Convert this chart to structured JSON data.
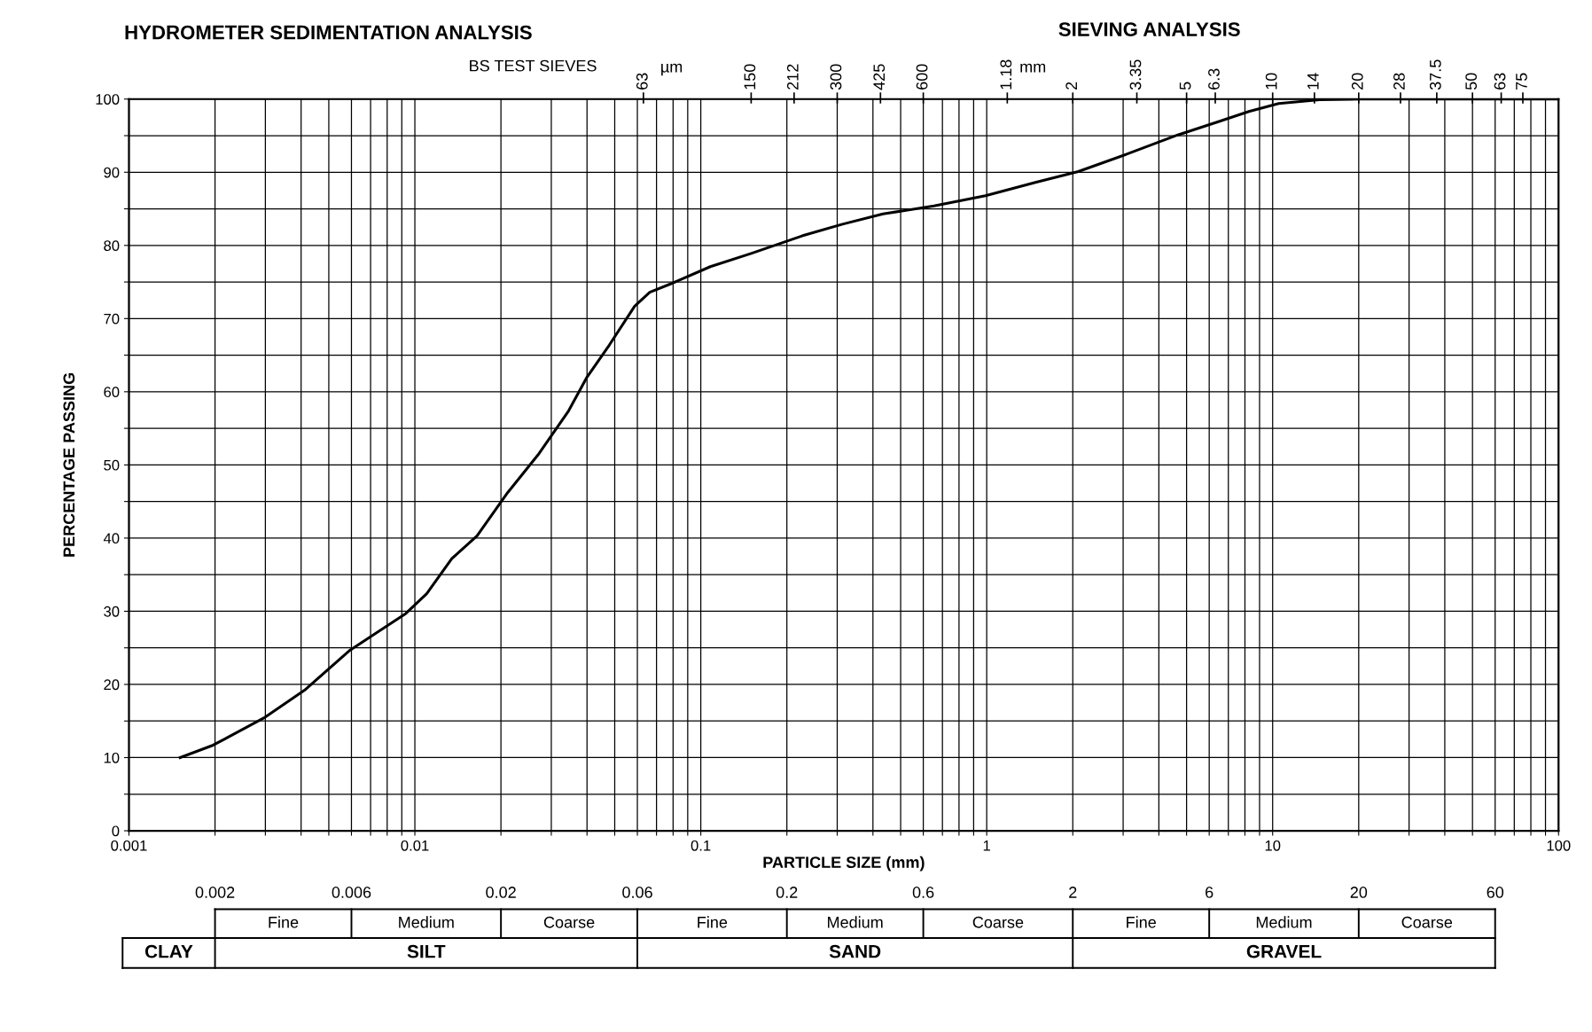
{
  "chart_data": {
    "type": "line",
    "title": "HYDROMETER SEDIMENTATION ANALYSIS",
    "xlabel": "PARTICLE SIZE (mm)",
    "ylabel": "PERCENTAGE PASSING",
    "log": "x",
    "grid": true,
    "legend": false,
    "marker": "none",
    "line_style": "solid",
    "xlim": [
      0.001,
      100
    ],
    "xticks": [
      0.001,
      {
        "value": 0.002,
        "label": null
      },
      {
        "value": 0.003,
        "label": null
      },
      {
        "value": 0.004,
        "label": null
      },
      {
        "value": 0.005,
        "label": null
      },
      {
        "value": 0.006,
        "label": null
      },
      {
        "value": 0.007,
        "label": null
      },
      {
        "value": 0.008,
        "label": null
      },
      {
        "value": 0.009,
        "label": null
      },
      0.01,
      {
        "value": 0.02,
        "label": null
      },
      {
        "value": 0.03,
        "label": null
      },
      {
        "value": 0.04,
        "label": null
      },
      {
        "value": 0.05,
        "label": null
      },
      {
        "value": 0.06,
        "label": null
      },
      {
        "value": 0.07,
        "label": null
      },
      {
        "value": 0.08,
        "label": null
      },
      {
        "value": 0.09,
        "label": null
      },
      0.1,
      {
        "value": 0.2,
        "label": null
      },
      {
        "value": 0.3,
        "label": null
      },
      {
        "value": 0.4,
        "label": null
      },
      {
        "value": 0.5,
        "label": null
      },
      {
        "value": 0.6,
        "label": null
      },
      {
        "value": 0.7,
        "label": null
      },
      {
        "value": 0.8,
        "label": null
      },
      {
        "value": 0.9,
        "label": null
      },
      1,
      {
        "value": 2,
        "label": null
      },
      {
        "value": 3,
        "label": null
      },
      {
        "value": 4,
        "label": null
      },
      {
        "value": 5,
        "label": null
      },
      {
        "value": 6,
        "label": null
      },
      {
        "value": 7,
        "label": null
      },
      {
        "value": 8,
        "label": null
      },
      {
        "value": 9,
        "label": null
      },
      10,
      {
        "value": 20,
        "label": null
      },
      {
        "value": 30,
        "label": null
      },
      {
        "value": 40,
        "label": null
      },
      {
        "value": 50,
        "label": null
      },
      {
        "value": 60,
        "label": null
      },
      {
        "value": 70,
        "label": null
      },
      {
        "value": 80,
        "label": null
      },
      {
        "value": 90,
        "label": null
      },
      100
    ],
    "ylim": [
      0,
      100
    ],
    "yticks": [
      0,
      {
        "value": 5,
        "label": null
      },
      10,
      {
        "value": 15,
        "label": null
      },
      20,
      {
        "value": 25,
        "label": null
      },
      30,
      {
        "value": 35,
        "label": null
      },
      40,
      {
        "value": 45,
        "label": null
      },
      50,
      {
        "value": 55,
        "label": null
      },
      60,
      {
        "value": 65,
        "label": null
      },
      70,
      {
        "value": 75,
        "label": null
      },
      80,
      {
        "value": 85,
        "label": null
      },
      90,
      {
        "value": 95,
        "label": null
      },
      100
    ],
    "annotations": [
      "SIEVING ANALYSIS",
      "BS TEST SIEVES",
      "µm",
      "mm",
      "CLAY",
      "Fine",
      "Medium",
      "Coarse",
      "Fine",
      "Medium",
      "Coarse",
      "Fine",
      "Medium",
      "Coarse",
      "SILT",
      "SAND",
      "GRAVEL"
    ],
    "ref_lines": [
      {
        "axis": "x",
        "value": 0.063,
        "label": "63"
      },
      {
        "axis": "x",
        "value": 0.15,
        "label": "150"
      },
      {
        "axis": "x",
        "value": 0.212,
        "label": "212"
      },
      {
        "axis": "x",
        "value": 0.3,
        "label": "300"
      },
      {
        "axis": "x",
        "value": 0.425,
        "label": "425"
      },
      {
        "axis": "x",
        "value": 0.6,
        "label": "600"
      },
      {
        "axis": "x",
        "value": 1.18,
        "label": "1.18"
      },
      {
        "axis": "x",
        "value": 2,
        "label": "2"
      },
      {
        "axis": "x",
        "value": 3.35,
        "label": "3.35"
      },
      {
        "axis": "x",
        "value": 5,
        "label": "5"
      },
      {
        "axis": "x",
        "value": 6.3,
        "label": "6.3"
      },
      {
        "axis": "x",
        "value": 10,
        "label": "10"
      },
      {
        "axis": "x",
        "value": 14,
        "label": "14"
      },
      {
        "axis": "x",
        "value": 20,
        "label": "20"
      },
      {
        "axis": "x",
        "value": 28,
        "label": "28"
      },
      {
        "axis": "x",
        "value": 37.5,
        "label": "37.5"
      },
      {
        "axis": "x",
        "value": 50,
        "label": "50"
      },
      {
        "axis": "x",
        "value": 63,
        "label": "63"
      },
      {
        "axis": "x",
        "value": 75,
        "label": "75"
      },
      {
        "axis": "x",
        "value": 0.002,
        "label": "0.002",
        "line_style": "solid"
      },
      {
        "axis": "x",
        "value": 0.006,
        "label": "0.006",
        "line_style": "solid"
      },
      {
        "axis": "x",
        "value": 0.02,
        "label": "0.02",
        "line_style": "solid"
      },
      {
        "axis": "x",
        "value": 0.06,
        "label": "0.06",
        "line_style": "solid"
      },
      {
        "axis": "x",
        "value": 0.2,
        "label": "0.2",
        "line_style": "solid"
      },
      {
        "axis": "x",
        "value": 0.6,
        "label": "0.6",
        "line_style": "solid"
      },
      {
        "axis": "x",
        "value": 2,
        "label": "2",
        "line_style": "solid"
      },
      {
        "axis": "x",
        "value": 6,
        "label": "6",
        "line_style": "solid"
      },
      {
        "axis": "x",
        "value": 20,
        "label": "20",
        "line_style": "solid"
      },
      {
        "axis": "x",
        "value": 60,
        "label": "60",
        "line_style": "solid"
      }
    ],
    "series": [
      {
        "color": "#000000",
        "x": [
          0.00151,
          0.00197,
          0.00296,
          0.00411,
          0.00594,
          0.0073,
          0.0093,
          0.011,
          0.01346,
          0.0165,
          0.0211,
          0.027,
          0.0345,
          0.04,
          0.0479,
          0.0587,
          0.0663,
          0.078,
          0.108,
          0.15,
          0.226,
          0.313,
          0.434,
          0.654,
          0.99,
          1.48,
          2.09,
          3.1,
          4.66,
          6.46,
          8.26,
          10.5,
          14.6,
          20.3,
          100
        ],
        "values": [
          10,
          11.7,
          15.4,
          19.2,
          24.7,
          27,
          29.7,
          32.4,
          37.2,
          40.3,
          46.2,
          51.4,
          57.4,
          62,
          66.4,
          71.7,
          73.6,
          74.7,
          77.1,
          78.9,
          81.3,
          82.9,
          84.3,
          85.4,
          86.8,
          88.6,
          90.1,
          92.5,
          95.1,
          96.9,
          98.3,
          99.4,
          99.9,
          100,
          100
        ]
      }
    ]
  }
}
